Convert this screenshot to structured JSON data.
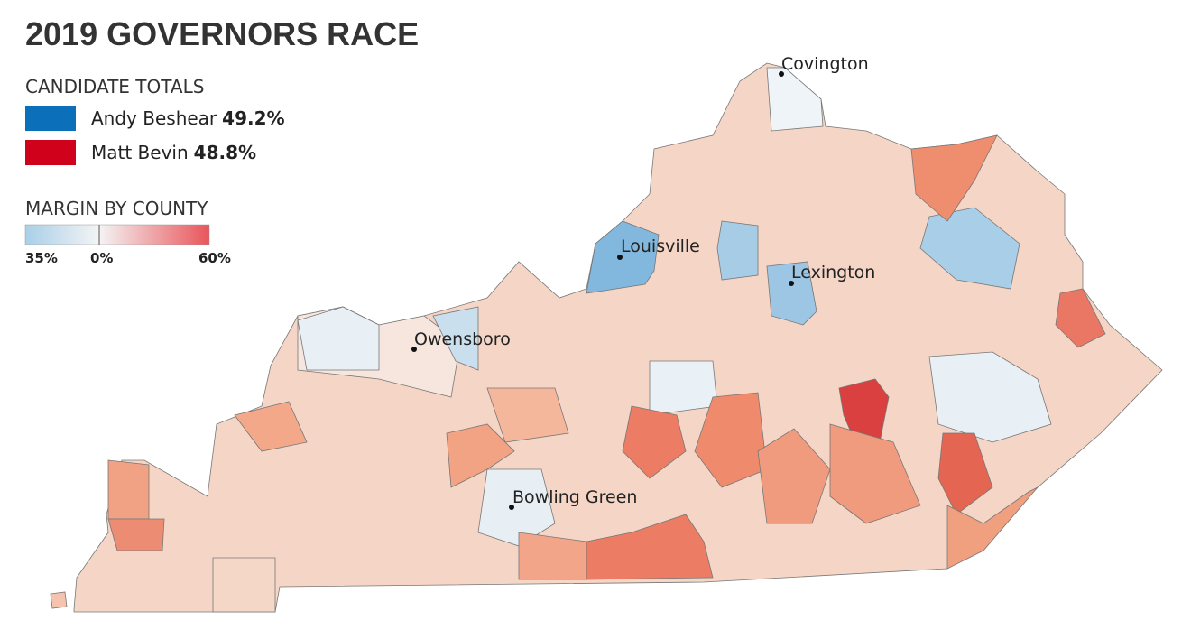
{
  "title": "2019 GOVERNORS RACE",
  "candidate_totals": {
    "heading": "CANDIDATE TOTALS",
    "candidates": [
      {
        "name": "Andy Beshear",
        "share": "49.2%",
        "color": "#0b6fba"
      },
      {
        "name": "Matt Bevin",
        "share": "48.8%",
        "color": "#d0021b"
      }
    ]
  },
  "margin_legend": {
    "heading": "MARGIN BY COUNTY",
    "labels": [
      "35%",
      "0%",
      "60%"
    ]
  },
  "cities": [
    "Covington",
    "Louisville",
    "Lexington",
    "Owensboro",
    "Bowling Green"
  ]
}
